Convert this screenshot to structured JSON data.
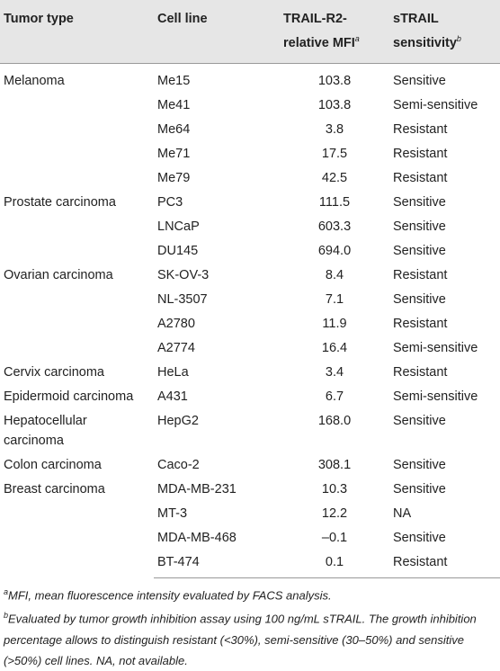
{
  "table": {
    "headers": [
      {
        "text": "Tumor type"
      },
      {
        "text": "Cell line"
      },
      {
        "text": "TRAIL-R2-relative MFI",
        "sup": "a"
      },
      {
        "text": "sTRAIL sensitivity",
        "sup": "b"
      }
    ],
    "groups": [
      {
        "tumor_type": "Melanoma",
        "rows": [
          [
            "Me15",
            "103.8",
            "Sensitive"
          ],
          [
            "Me41",
            "103.8",
            "Semi-sensitive"
          ],
          [
            "Me64",
            "3.8",
            "Resistant"
          ],
          [
            "Me71",
            "17.5",
            "Resistant"
          ],
          [
            "Me79",
            "42.5",
            "Resistant"
          ]
        ]
      },
      {
        "tumor_type": "Prostate carcinoma",
        "rows": [
          [
            "PC3",
            "111.5",
            "Sensitive"
          ],
          [
            "LNCaP",
            "603.3",
            "Sensitive"
          ],
          [
            "DU145",
            "694.0",
            "Sensitive"
          ]
        ]
      },
      {
        "tumor_type": "Ovarian carcinoma",
        "rows": [
          [
            "SK-OV-3",
            "8.4",
            "Resistant"
          ],
          [
            "NL-3507",
            "7.1",
            "Sensitive"
          ],
          [
            "A2780",
            "11.9",
            "Resistant"
          ],
          [
            "A2774",
            "16.4",
            "Semi-sensitive"
          ]
        ]
      },
      {
        "tumor_type": "Cervix carcinoma",
        "rows": [
          [
            "HeLa",
            "3.4",
            "Resistant"
          ]
        ]
      },
      {
        "tumor_type": "Epidermoid carcinoma",
        "rows": [
          [
            "A431",
            "6.7",
            "Semi-sensitive"
          ]
        ]
      },
      {
        "tumor_type": "Hepatocellular carcinoma",
        "rows": [
          [
            "HepG2",
            "168.0",
            "Sensitive"
          ]
        ]
      },
      {
        "tumor_type": "Colon carcinoma",
        "rows": [
          [
            "Caco-2",
            "308.1",
            "Sensitive"
          ]
        ]
      },
      {
        "tumor_type": "Breast carcinoma",
        "rows": [
          [
            "MDA-MB-231",
            "10.3",
            "Sensitive"
          ],
          [
            "MT-3",
            "12.2",
            "NA"
          ],
          [
            "MDA-MB-468",
            "–0.1",
            "Sensitive"
          ],
          [
            "BT-474",
            "0.1",
            "Resistant"
          ]
        ]
      }
    ]
  },
  "footnotes": [
    {
      "mark": "a",
      "text": "MFI, mean fluorescence intensity evaluated by FACS analysis."
    },
    {
      "mark": "b",
      "text": "Evaluated by tumor growth inhibition assay using 100 ng/mL sTRAIL. The growth inhibition percentage allows to distinguish resistant (<30%), semi-sensitive (30–50%) and sensitive (>50%) cell lines. NA, not available."
    }
  ]
}
